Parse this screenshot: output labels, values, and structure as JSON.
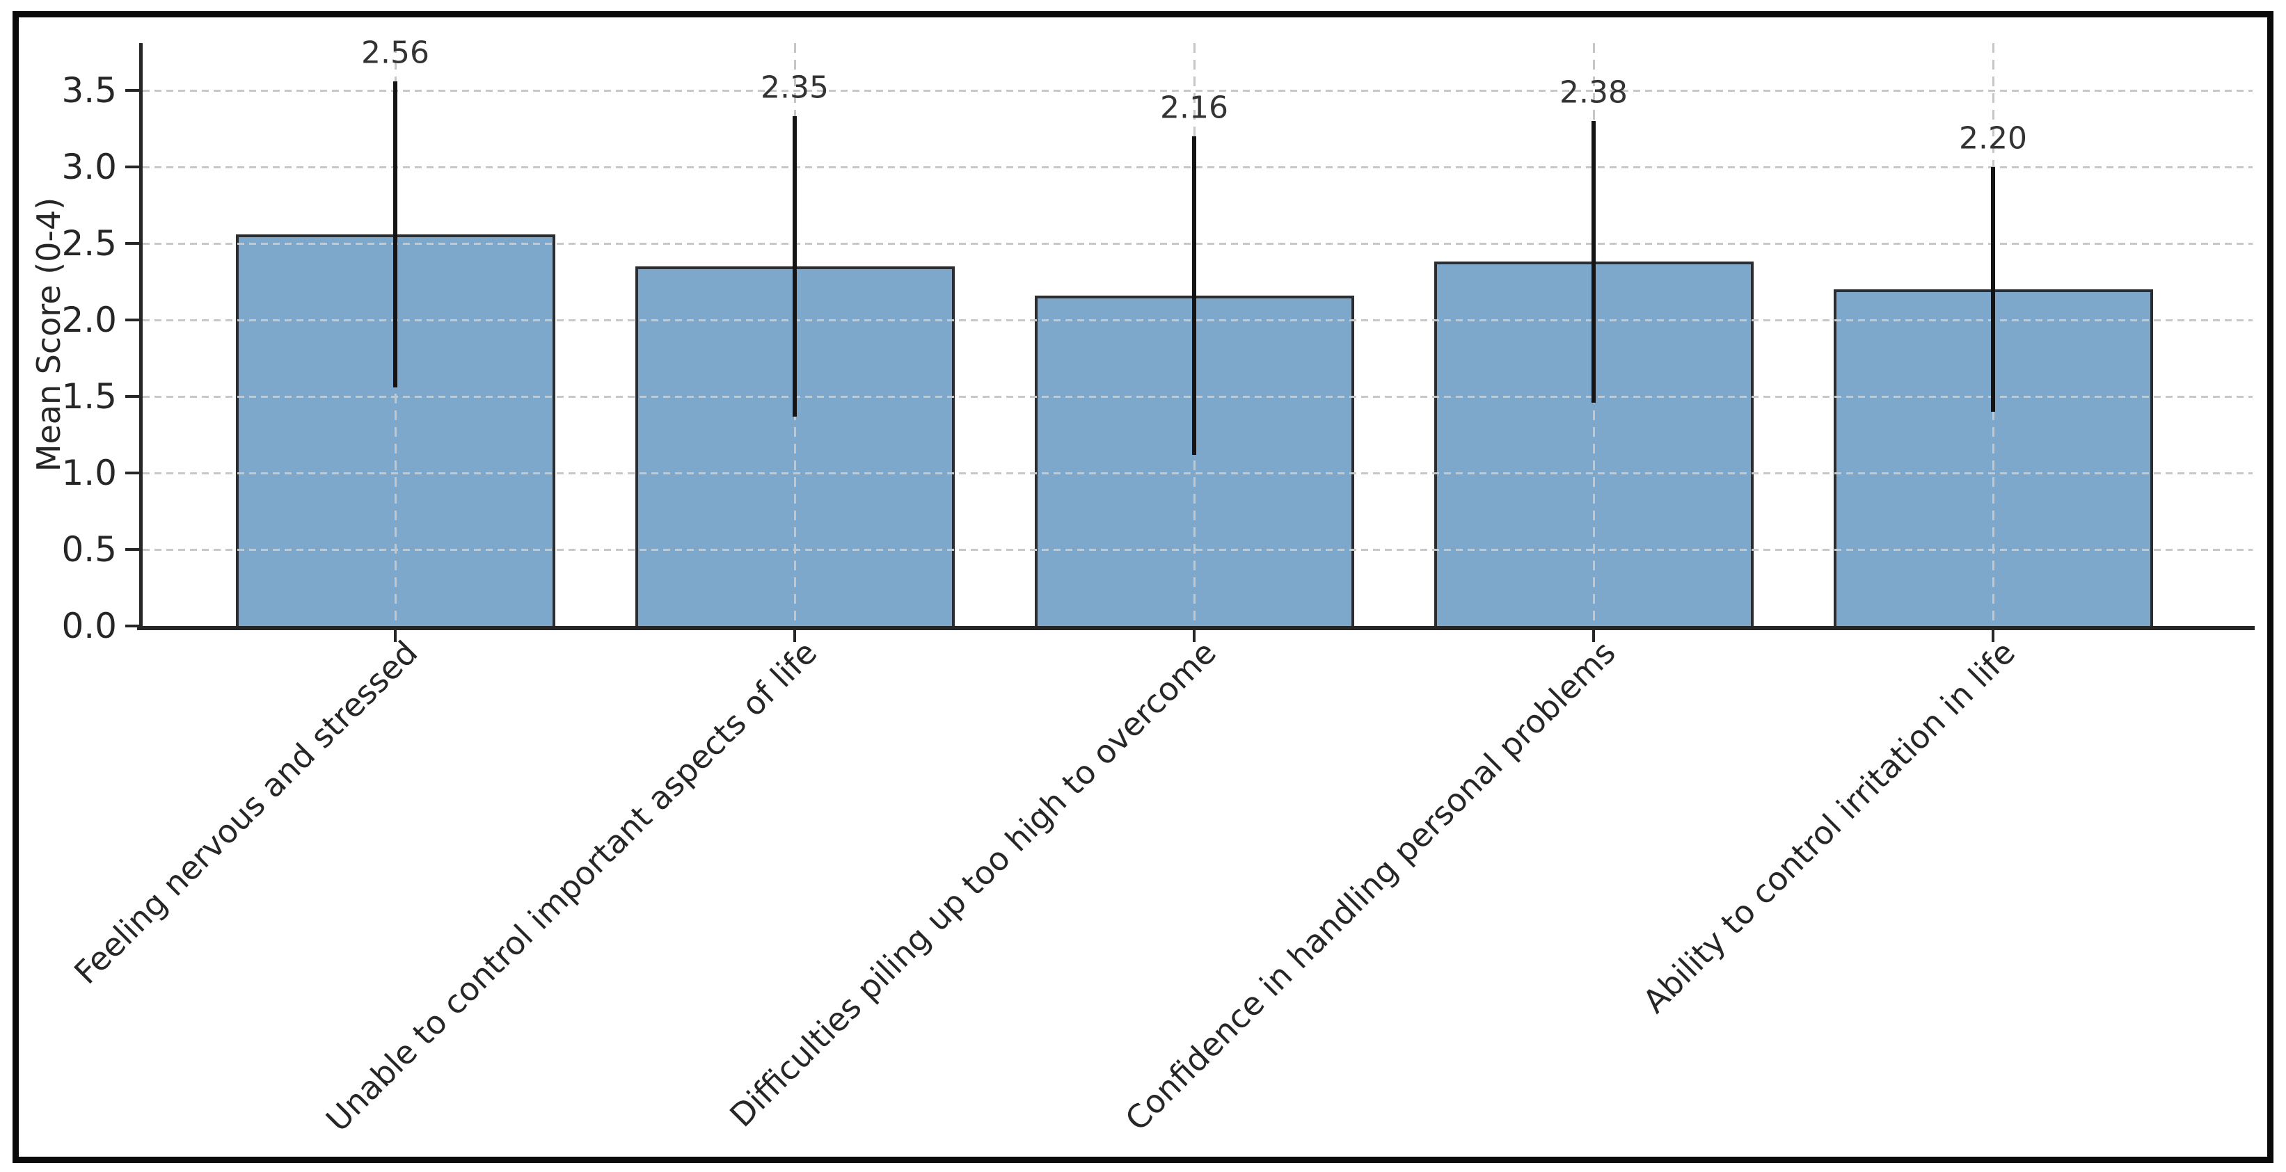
{
  "chart_data": {
    "type": "bar",
    "title": "",
    "categories": [
      "Feeling nervous and stressed",
      "Unable to control important aspects of life",
      "Difficulties piling up too high to overcome",
      "Confidence in handling personal problems",
      "Ability to control irritation in life"
    ],
    "values": [
      2.56,
      2.35,
      2.16,
      2.38,
      2.2
    ],
    "value_labels": [
      "2.56",
      "2.35",
      "2.16",
      "2.38",
      "2.20"
    ],
    "error_bars": [
      1.0,
      0.98,
      1.04,
      0.92,
      0.8
    ],
    "xlabel": "",
    "ylabel": "Mean Score (0-4)",
    "ytick_labels": [
      "0.0",
      "0.5",
      "1.0",
      "1.5",
      "2.0",
      "2.5",
      "3.0",
      "3.5"
    ],
    "ytick_values": [
      0.0,
      0.5,
      1.0,
      1.5,
      2.0,
      2.5,
      3.0,
      3.5
    ],
    "ylim": [
      0,
      3.81
    ],
    "grid": "dashed horizontal gridlines at each y tick and dashed vertical gridlines at each bar center",
    "legend": null,
    "colors": {
      "bar_fill": "#7da7cb",
      "bar_edge": "#2a2d31",
      "error_bar": "#141414",
      "grid_line": "#c8c8c8",
      "axis": "#262626",
      "tick_text": "#262626",
      "value_text": "#333333",
      "background": "#ffffff",
      "figure_border": "#0a0a0a"
    }
  }
}
